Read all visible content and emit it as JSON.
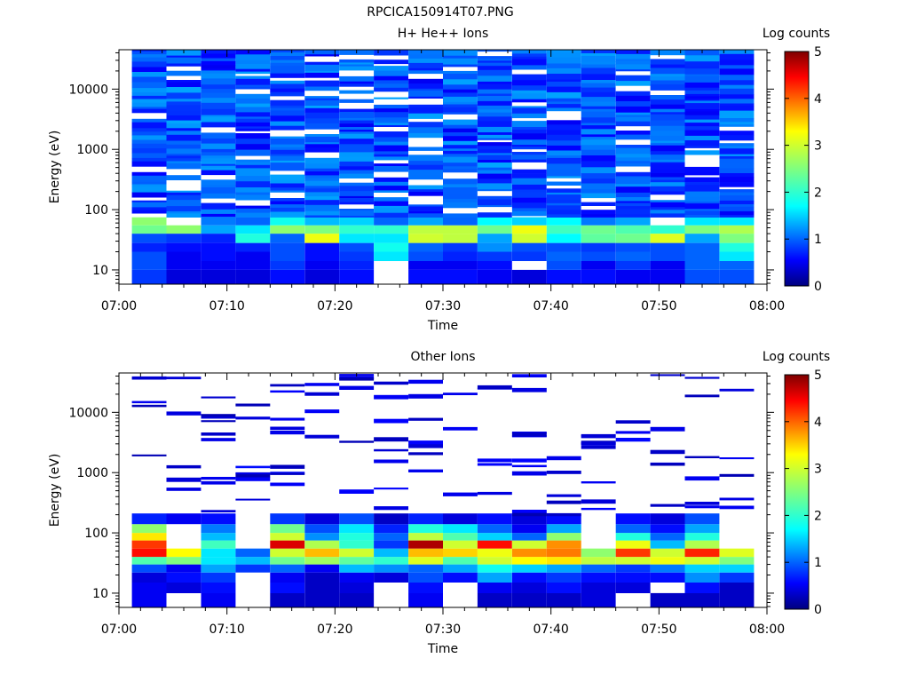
{
  "figure_title": "RPCICA150914T07.PNG",
  "colorbar": {
    "label": "Log counts",
    "ticks": [
      "0",
      "1",
      "2",
      "3",
      "4",
      "5"
    ],
    "min": 0,
    "max": 5,
    "colormap": [
      "#00007f",
      "#0000ff",
      "#007fff",
      "#00ffff",
      "#7fff7f",
      "#ffff00",
      "#ff7f00",
      "#ff0000",
      "#7f0000"
    ]
  },
  "chart_data": [
    {
      "type": "heatmap",
      "title": "H+ He++ Ions",
      "xlabel": "Time",
      "ylabel": "Energy (eV)",
      "x_tick_labels": [
        "07:00",
        "07:10",
        "07:20",
        "07:30",
        "07:40",
        "07:50",
        "08:00"
      ],
      "x_range_minutes": [
        0,
        60
      ],
      "y_scale": "log",
      "y_range": [
        5.8,
        45000
      ],
      "y_tick_labels": [
        "10",
        "100",
        "1000",
        "10000"
      ],
      "time_bins_minutes": [
        [
          1.2,
          4.4
        ],
        [
          4.4,
          7.6
        ],
        [
          7.6,
          10.8
        ],
        [
          10.8,
          14.0
        ],
        [
          14.0,
          17.2
        ],
        [
          17.2,
          20.4
        ],
        [
          20.4,
          23.6
        ],
        [
          23.6,
          26.8
        ],
        [
          26.8,
          30.0
        ],
        [
          30.0,
          33.2
        ],
        [
          33.2,
          36.4
        ],
        [
          36.4,
          39.6
        ],
        [
          39.6,
          42.8
        ],
        [
          42.8,
          46.0
        ],
        [
          46.0,
          49.2
        ],
        [
          49.2,
          52.4
        ],
        [
          52.4,
          55.6
        ],
        [
          55.6,
          58.8
        ]
      ],
      "energy_bands_eV": [
        {
          "range": [
            5.8,
            10
          ],
          "log_counts": [
            0.8,
            0.4,
            0.4,
            0.4,
            0.6,
            0.4,
            0.6,
            null,
            0.6,
            0.6,
            0.5,
            0.4,
            0.6,
            0.6,
            0.5,
            0.5,
            0.9,
            0.9
          ]
        },
        {
          "range": [
            10,
            14
          ],
          "log_counts": [
            0.9,
            0.5,
            0.5,
            0.5,
            0.8,
            0.5,
            0.7,
            null,
            0.5,
            0.5,
            0.6,
            null,
            0.9,
            0.5,
            0.8,
            0.5,
            1.0,
            1.0
          ]
        },
        {
          "range": [
            14,
            20
          ],
          "log_counts": [
            0.9,
            0.5,
            0.6,
            0.5,
            0.9,
            0.6,
            0.8,
            1.6,
            0.9,
            0.7,
            0.8,
            0.8,
            1.0,
            0.9,
            1.0,
            0.9,
            1.0,
            1.6
          ]
        },
        {
          "range": [
            20,
            28
          ],
          "log_counts": [
            0.7,
            0.6,
            0.6,
            0.7,
            0.9,
            0.6,
            0.9,
            1.8,
            1.0,
            0.8,
            1.2,
            0.9,
            0.9,
            0.8,
            0.9,
            0.9,
            1.0,
            1.9
          ]
        },
        {
          "range": [
            28,
            40
          ],
          "log_counts": [
            0.9,
            0.8,
            0.7,
            1.9,
            1.0,
            3.2,
            1.6,
            1.6,
            3.0,
            2.9,
            1.3,
            3.0,
            1.7,
            2.3,
            2.4,
            3.1,
            1.3,
            2.5
          ]
        },
        {
          "range": [
            40,
            55
          ],
          "log_counts": [
            2.4,
            2.6,
            1.3,
            1.6,
            2.6,
            2.5,
            2.0,
            2.0,
            2.9,
            2.9,
            2.4,
            3.2,
            2.1,
            2.4,
            2.2,
            2.0,
            2.5,
            2.8
          ]
        },
        {
          "range": [
            55,
            75
          ],
          "log_counts": [
            2.6,
            null,
            1.1,
            1.0,
            1.8,
            1.4,
            1.5,
            1.0,
            1.3,
            1.0,
            1.7,
            1.5,
            1.7,
            1.1,
            1.3,
            null,
            1.6,
            1.6
          ]
        }
      ],
      "upper_band": {
        "range_eV": [
          75,
          45000
        ],
        "log_counts_approx": [
          0.5,
          1.3
        ],
        "note": "blue with white gaps"
      }
    },
    {
      "type": "heatmap",
      "title": "Other Ions",
      "xlabel": "Time",
      "ylabel": "Energy (eV)",
      "x_tick_labels": [
        "07:00",
        "07:10",
        "07:20",
        "07:30",
        "07:40",
        "07:50",
        "08:00"
      ],
      "x_range_minutes": [
        0,
        60
      ],
      "y_scale": "log",
      "y_range": [
        5.8,
        45000
      ],
      "y_tick_labels": [
        "10",
        "100",
        "1000",
        "10000"
      ],
      "time_bins_minutes": [
        [
          1.2,
          4.4
        ],
        [
          4.4,
          7.6
        ],
        [
          7.6,
          10.8
        ],
        [
          10.8,
          14.0
        ],
        [
          14.0,
          17.2
        ],
        [
          17.2,
          20.4
        ],
        [
          20.4,
          23.6
        ],
        [
          23.6,
          26.8
        ],
        [
          26.8,
          30.0
        ],
        [
          30.0,
          33.2
        ],
        [
          33.2,
          36.4
        ],
        [
          36.4,
          39.6
        ],
        [
          39.6,
          42.8
        ],
        [
          42.8,
          46.0
        ],
        [
          46.0,
          49.2
        ],
        [
          49.2,
          52.4
        ],
        [
          52.4,
          55.6
        ],
        [
          55.6,
          58.8
        ]
      ],
      "energy_bands_eV": [
        {
          "range": [
            5.8,
            10
          ],
          "log_counts": [
            0.5,
            null,
            0.5,
            null,
            0.3,
            0.3,
            0.3,
            null,
            0.5,
            null,
            0.3,
            0.3,
            0.3,
            0.4,
            null,
            0.3,
            0.3,
            0.3
          ]
        },
        {
          "range": [
            10,
            15
          ],
          "log_counts": [
            0.5,
            0.4,
            0.6,
            null,
            0.6,
            0.3,
            0.4,
            null,
            0.6,
            null,
            0.5,
            0.4,
            0.6,
            0.4,
            0.4,
            null,
            0.6,
            0.3
          ]
        },
        {
          "range": [
            15,
            22
          ],
          "log_counts": [
            0.4,
            0.6,
            0.8,
            null,
            0.5,
            0.3,
            0.5,
            0.4,
            0.9,
            0.6,
            1.3,
            0.6,
            0.8,
            0.6,
            0.6,
            0.6,
            1.2,
            0.8
          ]
        },
        {
          "range": [
            22,
            30
          ],
          "log_counts": [
            0.9,
            0.5,
            1.3,
            0.8,
            1.0,
            0.5,
            1.4,
            1.2,
            1.0,
            1.3,
            1.8,
            1.5,
            1.3,
            1.0,
            0.8,
            1.1,
            1.5,
            1.5
          ]
        },
        {
          "range": [
            30,
            40
          ],
          "log_counts": [
            2.2,
            2.5,
            1.6,
            1.4,
            2.4,
            2.7,
            2.3,
            2.0,
            3.1,
            2.2,
            3.0,
            3.3,
            3.4,
            2.9,
            3.0,
            3.2,
            3.0,
            2.5
          ]
        },
        {
          "range": [
            40,
            55
          ],
          "log_counts": [
            4.4,
            3.3,
            1.6,
            1.0,
            3.0,
            3.6,
            3.0,
            1.4,
            3.6,
            3.5,
            3.2,
            3.8,
            3.9,
            2.6,
            4.2,
            3.0,
            4.3,
            3.1
          ]
        },
        {
          "range": [
            55,
            75
          ],
          "log_counts": [
            4.2,
            null,
            2.1,
            null,
            4.6,
            2.8,
            2.0,
            0.8,
            4.8,
            3.0,
            4.4,
            3.0,
            3.8,
            null,
            3.2,
            1.4,
            2.8,
            null
          ]
        },
        {
          "range": [
            75,
            100
          ],
          "log_counts": [
            3.4,
            null,
            1.4,
            null,
            3.0,
            1.2,
            1.9,
            1.0,
            2.9,
            2.2,
            1.5,
            1.0,
            2.6,
            null,
            1.9,
            1.0,
            1.9,
            null
          ]
        },
        {
          "range": [
            100,
            140
          ],
          "log_counts": [
            2.6,
            null,
            1.1,
            null,
            2.4,
            0.9,
            1.6,
            0.7,
            1.9,
            1.6,
            1.0,
            0.5,
            1.3,
            null,
            1.0,
            0.6,
            1.3,
            null
          ]
        },
        {
          "range": [
            140,
            210
          ],
          "log_counts": [
            0.7,
            0.5,
            0.6,
            null,
            0.8,
            0.4,
            0.9,
            0.3,
            0.7,
            0.4,
            0.6,
            0.4,
            0.6,
            null,
            0.6,
            0.4,
            0.9,
            null
          ]
        }
      ],
      "upper_traces": {
        "range_eV": [
          210,
          45000
        ],
        "log_counts_approx": [
          0.2,
          0.6
        ],
        "note": "sparse dark blue traces"
      }
    }
  ]
}
